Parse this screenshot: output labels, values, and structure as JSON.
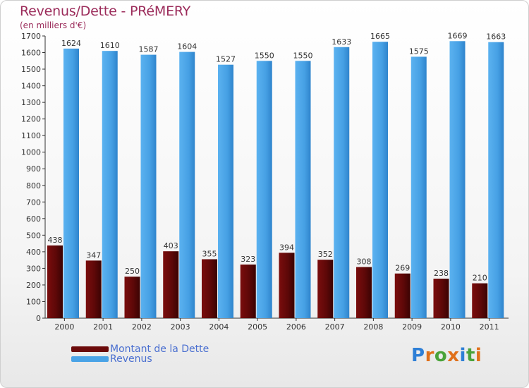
{
  "header": {
    "title": "Revenus/Dette - PRéMERY",
    "subtitle": "(en milliers d'€)"
  },
  "legend": {
    "dette_label": "Montant de la Dette",
    "revenus_label": "Revenus"
  },
  "logo": {
    "text": "Proxiti"
  },
  "colors": {
    "dette": "#6b0a0a",
    "revenus": "#4aa3e6",
    "title": "#9b2b5a",
    "legend_text": "#4a6fd0"
  },
  "chart_data": {
    "type": "bar",
    "categories": [
      "2000",
      "2001",
      "2002",
      "2003",
      "2004",
      "2005",
      "2006",
      "2007",
      "2008",
      "2009",
      "2010",
      "2011"
    ],
    "series": [
      {
        "name": "Montant de la Dette",
        "values": [
          438,
          347,
          250,
          403,
          355,
          323,
          394,
          352,
          308,
          269,
          238,
          210
        ]
      },
      {
        "name": "Revenus",
        "values": [
          1624,
          1610,
          1587,
          1604,
          1527,
          1550,
          1550,
          1633,
          1665,
          1575,
          1669,
          1663
        ]
      }
    ],
    "ylim": [
      0,
      1700
    ],
    "yticks": [
      0,
      100,
      200,
      300,
      400,
      500,
      600,
      700,
      800,
      900,
      1000,
      1100,
      1200,
      1300,
      1400,
      1500,
      1600,
      1700
    ],
    "grid": false
  }
}
